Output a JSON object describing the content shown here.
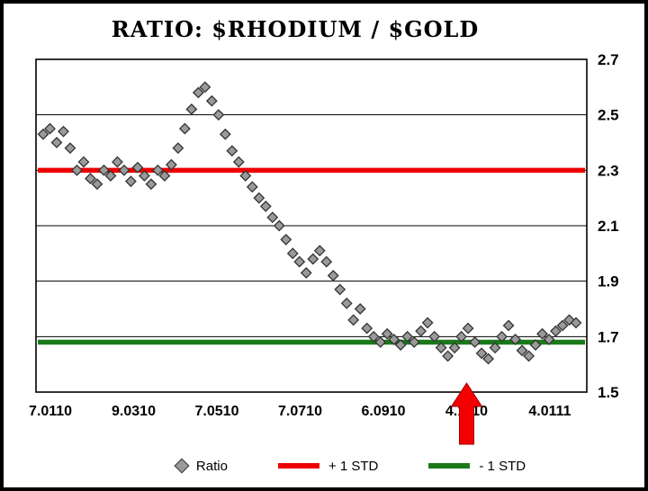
{
  "title": "RATIO: $RHODIUM / $GOLD",
  "chart_data": {
    "type": "scatter",
    "title": "RATIO: $RHODIUM / $GOLD",
    "x_tick_labels": [
      "7.0110",
      "9.0310",
      "7.0510",
      "7.0710",
      "6.0910",
      "4.1110",
      "4.0111"
    ],
    "y_ticks": [
      1.5,
      1.7,
      1.9,
      2.1,
      2.3,
      2.5,
      2.7
    ],
    "ylim": [
      1.5,
      2.7
    ],
    "grid": "horizontal",
    "y_axis_side": "right",
    "legend_position": "bottom",
    "series": [
      {
        "name": "Ratio",
        "marker": "diamond",
        "color": "#9a9a9a",
        "outline": "#333333",
        "values": [
          2.43,
          2.45,
          2.4,
          2.44,
          2.38,
          2.3,
          2.33,
          2.27,
          2.25,
          2.3,
          2.28,
          2.33,
          2.3,
          2.26,
          2.31,
          2.28,
          2.25,
          2.3,
          2.28,
          2.32,
          2.38,
          2.45,
          2.52,
          2.58,
          2.6,
          2.55,
          2.5,
          2.43,
          2.37,
          2.33,
          2.28,
          2.24,
          2.2,
          2.17,
          2.13,
          2.1,
          2.05,
          2.0,
          1.97,
          1.93,
          1.98,
          2.01,
          1.97,
          1.92,
          1.87,
          1.82,
          1.76,
          1.8,
          1.73,
          1.7,
          1.68,
          1.71,
          1.69,
          1.67,
          1.7,
          1.68,
          1.72,
          1.75,
          1.7,
          1.66,
          1.63,
          1.66,
          1.7,
          1.73,
          1.68,
          1.64,
          1.62,
          1.66,
          1.7,
          1.74,
          1.69,
          1.65,
          1.63,
          1.67,
          1.71,
          1.69,
          1.72,
          1.74,
          1.76,
          1.75
        ]
      },
      {
        "name": "+ 1 STD",
        "type": "hline",
        "y": 2.3,
        "color": "#ee0000"
      },
      {
        "name": "- 1 STD",
        "type": "hline",
        "y": 1.68,
        "color": "#1a7a1a"
      }
    ],
    "annotations": [
      {
        "type": "up-arrow",
        "near_x_label": "4.1110",
        "color": "#f40000"
      }
    ]
  },
  "legend": {
    "items": [
      {
        "label": "Ratio"
      },
      {
        "label": "+ 1 STD"
      },
      {
        "label": "- 1 STD"
      }
    ]
  }
}
